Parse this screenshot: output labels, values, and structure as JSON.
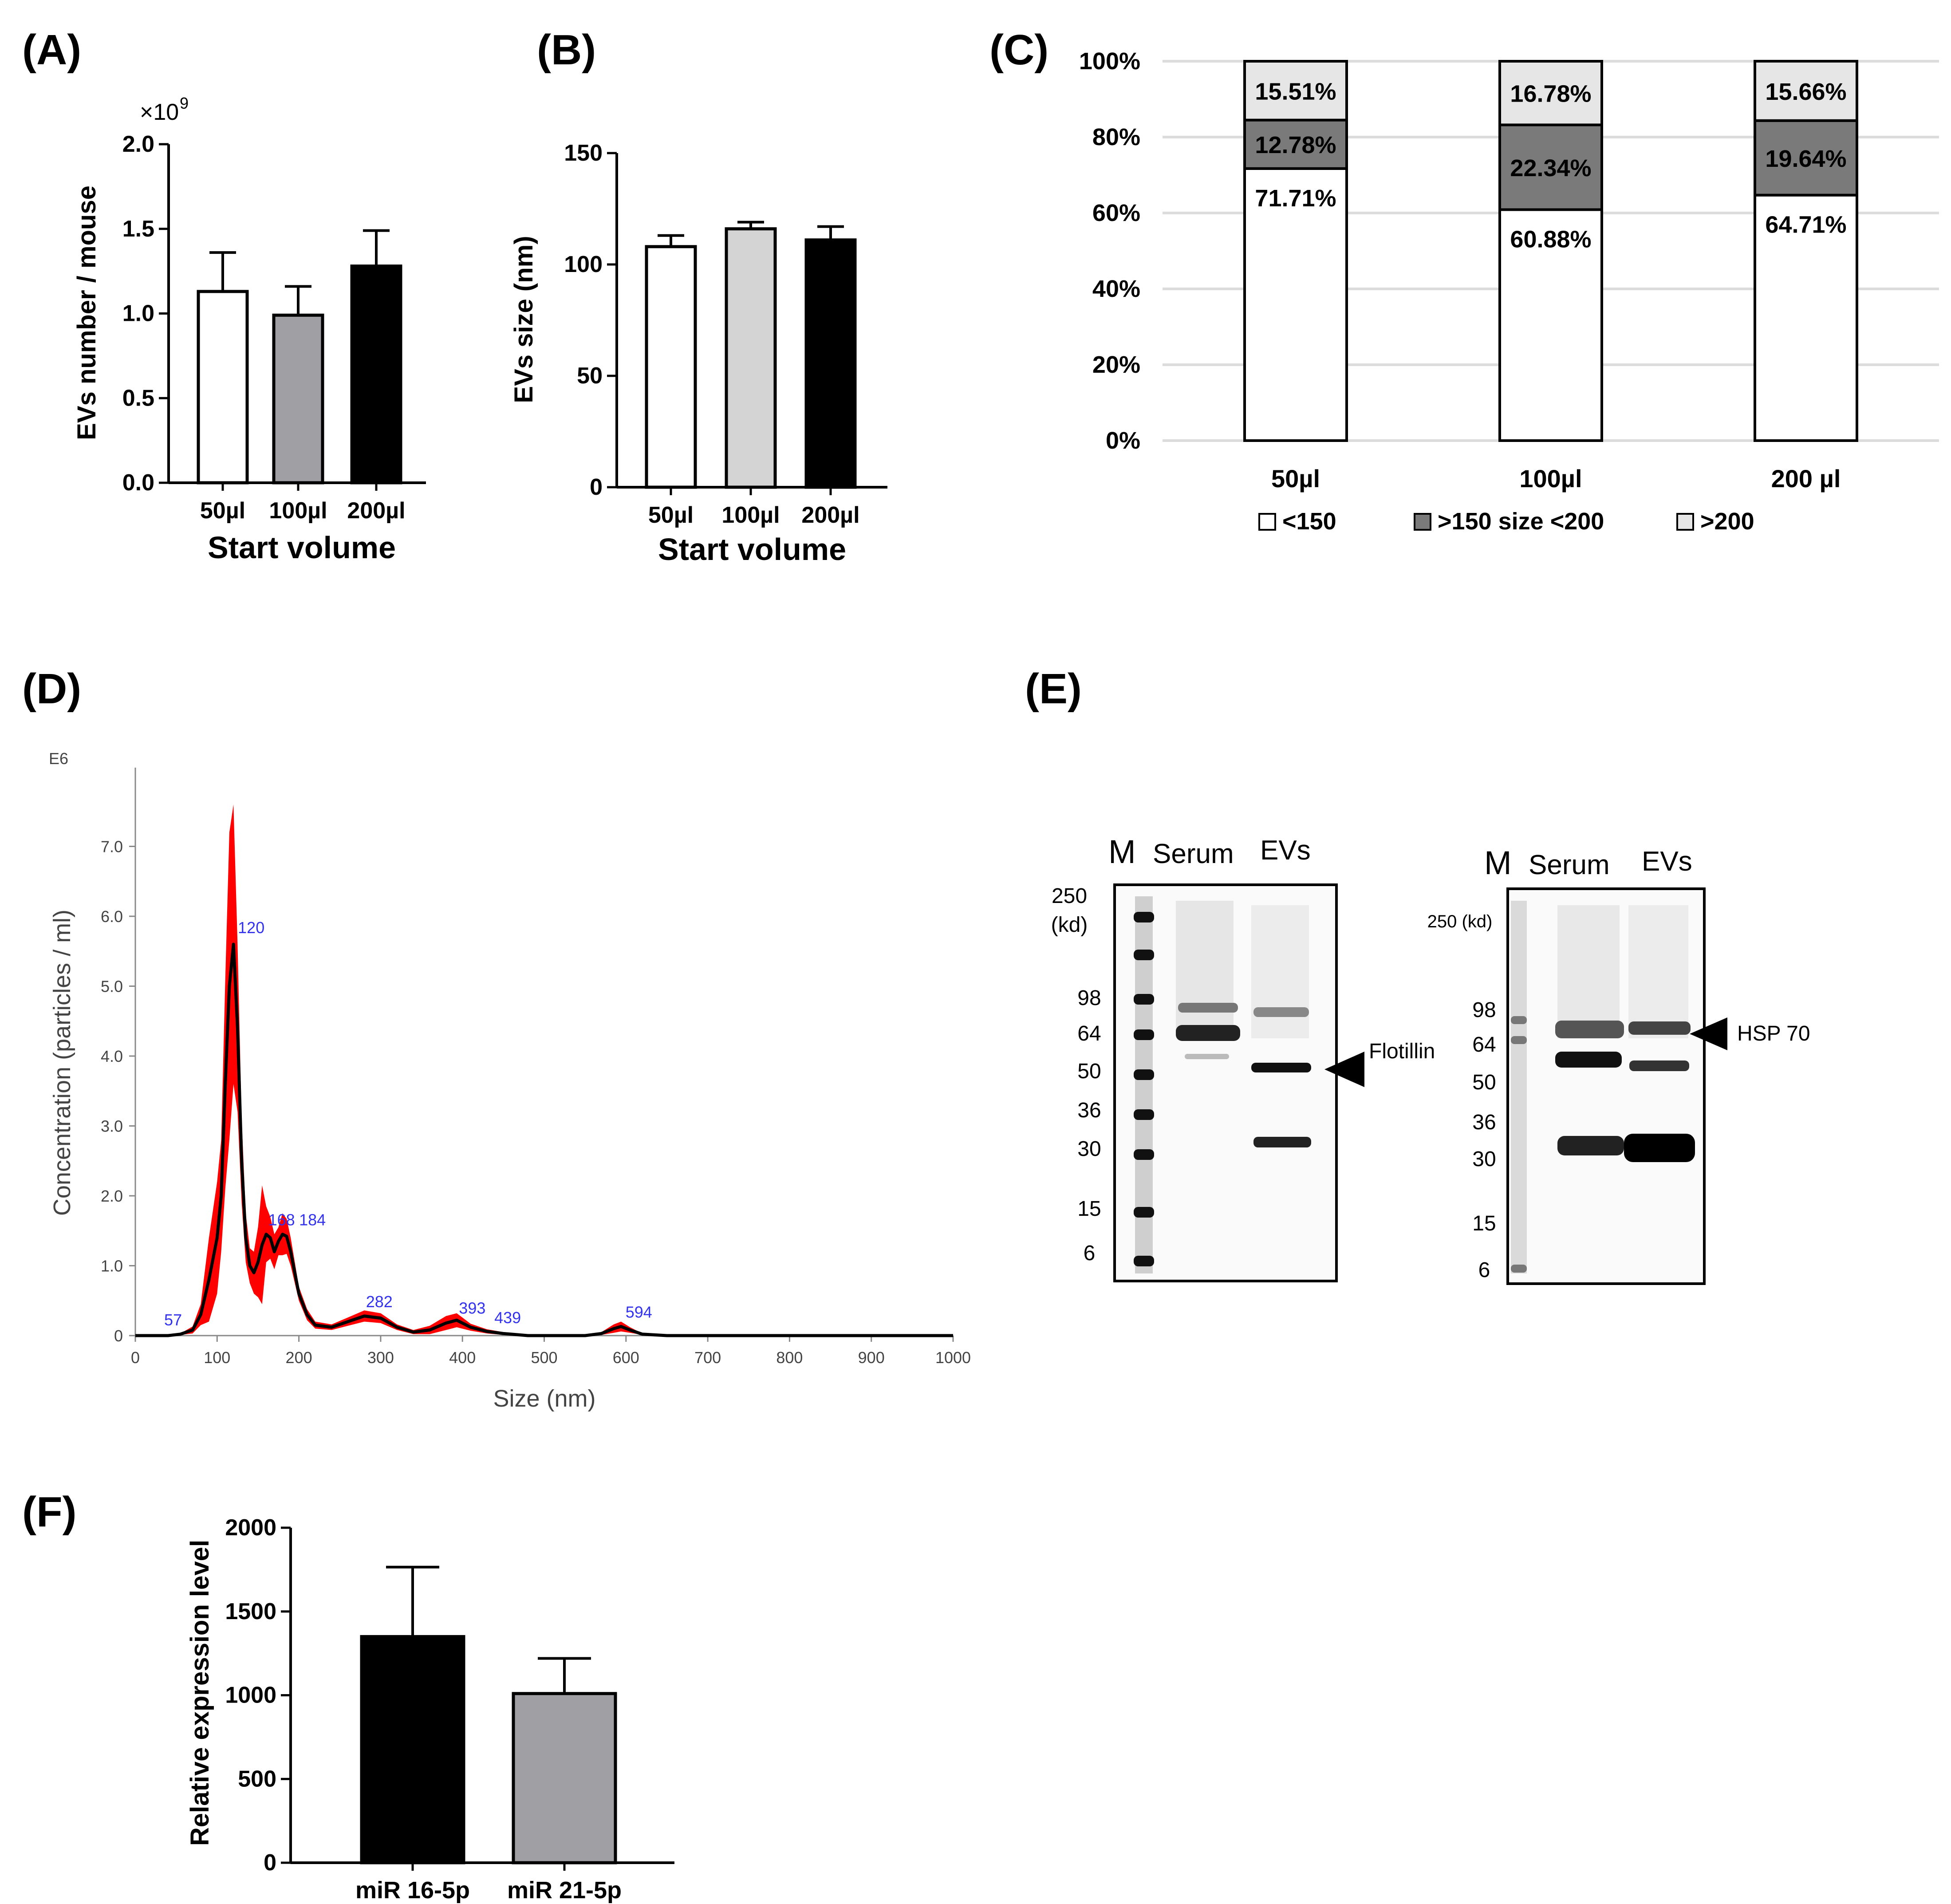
{
  "colors": {
    "white_bar": "#ffffff",
    "gray_bar": "#a0a0a4",
    "light_bar": "#d4d4d4",
    "black_bar": "#000000",
    "stack_dark": "#7a7a7a",
    "stack_light": "#e6e6e6",
    "nta_band": "#ff0000",
    "nta_line": "#000000",
    "nta_label": "#3333ee"
  },
  "chart_data": [
    {
      "panel": "(A)",
      "type": "bar",
      "title": "",
      "xlabel": "Start volume",
      "ylabel": "EVs number / mouse",
      "multiplier": "×10",
      "multiplier_exp": "9",
      "categories": [
        "50µl",
        "100µl",
        "200µl"
      ],
      "values": [
        1.13,
        0.99,
        1.28
      ],
      "errors": [
        0.23,
        0.17,
        0.21
      ],
      "ylim": [
        0,
        2.0
      ],
      "yticks": [
        0.0,
        0.5,
        1.0,
        1.5,
        2.0
      ],
      "ytick_labels": [
        "0.0",
        "0.5",
        "1.0",
        "1.5",
        "2.0"
      ]
    },
    {
      "panel": "(B)",
      "type": "bar",
      "title": "",
      "xlabel": "Start volume",
      "ylabel": "EVs size (nm)",
      "categories": [
        "50µl",
        "100µl",
        "200µl"
      ],
      "values": [
        108,
        116,
        111
      ],
      "errors": [
        5,
        3,
        6
      ],
      "ylim": [
        0,
        150
      ],
      "yticks": [
        0,
        50,
        100,
        150
      ],
      "ytick_labels": [
        "0",
        "50",
        "100",
        "150"
      ]
    },
    {
      "panel": "(C)",
      "type": "bar",
      "stacked": true,
      "title": "",
      "categories": [
        "50µl",
        "100µl",
        "200 µl"
      ],
      "series": [
        {
          "name": "<150",
          "values": [
            71.71,
            60.88,
            64.71
          ],
          "labels": [
            "71.71%",
            "60.88%",
            "64.71%"
          ]
        },
        {
          "name": ">150 size <200",
          "values": [
            12.78,
            22.34,
            19.64
          ],
          "labels": [
            "12.78%",
            "22.34%",
            "19.64%"
          ]
        },
        {
          "name": ">200",
          "values": [
            15.51,
            16.78,
            15.66
          ],
          "labels": [
            "15.51%",
            "16.78%",
            "15.66%"
          ]
        }
      ],
      "ylim": [
        0,
        100
      ],
      "yticks": [
        0,
        20,
        40,
        60,
        80,
        100
      ],
      "ytick_labels": [
        "0%",
        "20%",
        "40%",
        "60%",
        "80%",
        "100%"
      ],
      "legend_position": "bottom"
    },
    {
      "panel": "(D)",
      "type": "line",
      "title": "",
      "xlabel": "Size (nm)",
      "ylabel": "Concentration (particles / ml)",
      "y_scale_label": "E6",
      "xlim": [
        0,
        1000
      ],
      "ylim": [
        0,
        8
      ],
      "xticks": [
        0,
        100,
        200,
        300,
        400,
        500,
        600,
        700,
        800,
        900,
        1000
      ],
      "xtick_labels": [
        "0",
        "100",
        "200",
        "300",
        "400",
        "500",
        "600",
        "700",
        "800",
        "900",
        "1000"
      ],
      "yticks": [
        0,
        1,
        2,
        3,
        4,
        5,
        6,
        7
      ],
      "ytick_labels": [
        "0",
        "1.0",
        "2.0",
        "3.0",
        "4.0",
        "5.0",
        "6.0",
        "7.0"
      ],
      "x": [
        0,
        40,
        55,
        70,
        80,
        90,
        100,
        105,
        110,
        115,
        120,
        125,
        130,
        135,
        140,
        145,
        150,
        155,
        160,
        165,
        170,
        175,
        180,
        185,
        190,
        200,
        210,
        220,
        240,
        260,
        280,
        300,
        320,
        340,
        360,
        380,
        393,
        410,
        430,
        450,
        480,
        500,
        520,
        550,
        570,
        585,
        594,
        605,
        620,
        650,
        700,
        800,
        900,
        1000
      ],
      "y": [
        0.0,
        0.0,
        0.02,
        0.08,
        0.3,
        0.8,
        1.4,
        2.0,
        3.6,
        5.0,
        5.6,
        4.4,
        2.5,
        1.4,
        1.0,
        0.9,
        1.05,
        1.3,
        1.45,
        1.4,
        1.2,
        1.35,
        1.45,
        1.42,
        1.2,
        0.6,
        0.3,
        0.15,
        0.12,
        0.2,
        0.28,
        0.25,
        0.12,
        0.05,
        0.08,
        0.18,
        0.22,
        0.12,
        0.06,
        0.03,
        0.0,
        0.0,
        0.0,
        0.0,
        0.03,
        0.1,
        0.13,
        0.08,
        0.02,
        0.0,
        0.0,
        0.0,
        0.0,
        0.0
      ],
      "band": [
        0.0,
        0.0,
        0.01,
        0.05,
        0.15,
        0.6,
        0.8,
        0.8,
        1.5,
        2.2,
        2.0,
        1.2,
        0.6,
        0.35,
        0.25,
        0.3,
        0.5,
        0.85,
        0.4,
        0.3,
        0.25,
        0.2,
        0.3,
        0.25,
        0.2,
        0.1,
        0.08,
        0.05,
        0.04,
        0.06,
        0.08,
        0.07,
        0.04,
        0.03,
        0.06,
        0.1,
        0.1,
        0.05,
        0.03,
        0.02,
        0.0,
        0.0,
        0.0,
        0.0,
        0.02,
        0.06,
        0.07,
        0.04,
        0.01,
        0.0,
        0.0,
        0.0,
        0.0,
        0.0
      ],
      "peak_labels": [
        {
          "x": 57,
          "y": 0.05,
          "label": "57"
        },
        {
          "x": 120,
          "y": 5.6,
          "label": "120"
        },
        {
          "x": 168,
          "y": 1.45,
          "label": "168"
        },
        {
          "x": 184,
          "y": 1.45,
          "label": "184"
        },
        {
          "x": 282,
          "y": 0.28,
          "label": "282"
        },
        {
          "x": 393,
          "y": 0.22,
          "label": "393"
        },
        {
          "x": 439,
          "y": 0.05,
          "label": "439"
        },
        {
          "x": 594,
          "y": 0.13,
          "label": "594"
        }
      ]
    },
    {
      "panel": "(F)",
      "type": "bar",
      "title": "",
      "xlabel": "",
      "ylabel": "Relative expression level",
      "categories": [
        "miR 16-5p",
        "miR 21-5p"
      ],
      "values": [
        1350,
        1010
      ],
      "errors": [
        415,
        210
      ],
      "ylim": [
        0,
        2000
      ],
      "yticks": [
        0,
        500,
        1000,
        1500,
        2000
      ],
      "ytick_labels": [
        "0",
        "500",
        "1000",
        "1500",
        "2000"
      ]
    }
  ],
  "panels": {
    "a_label": "(A)",
    "b_label": "(B)",
    "c_label": "(C)",
    "d_label": "(D)",
    "e_label": "(E)",
    "f_label": "(F)"
  },
  "blot": {
    "left": {
      "marker_label": "M",
      "serum_label": "Serum",
      "evs_label": "EVs",
      "kd_250": "250",
      "kd_unit": "(kd)",
      "markers": [
        "98",
        "64",
        "50",
        "36",
        "30",
        "15",
        "6"
      ],
      "target": "Flotillin"
    },
    "right": {
      "marker_label": "M",
      "serum_label": "Serum",
      "evs_label": "EVs",
      "kd_250": "250 (kd)",
      "markers": [
        "98",
        "64",
        "50",
        "36",
        "30",
        "15",
        "6"
      ],
      "target": "HSP 70"
    }
  }
}
